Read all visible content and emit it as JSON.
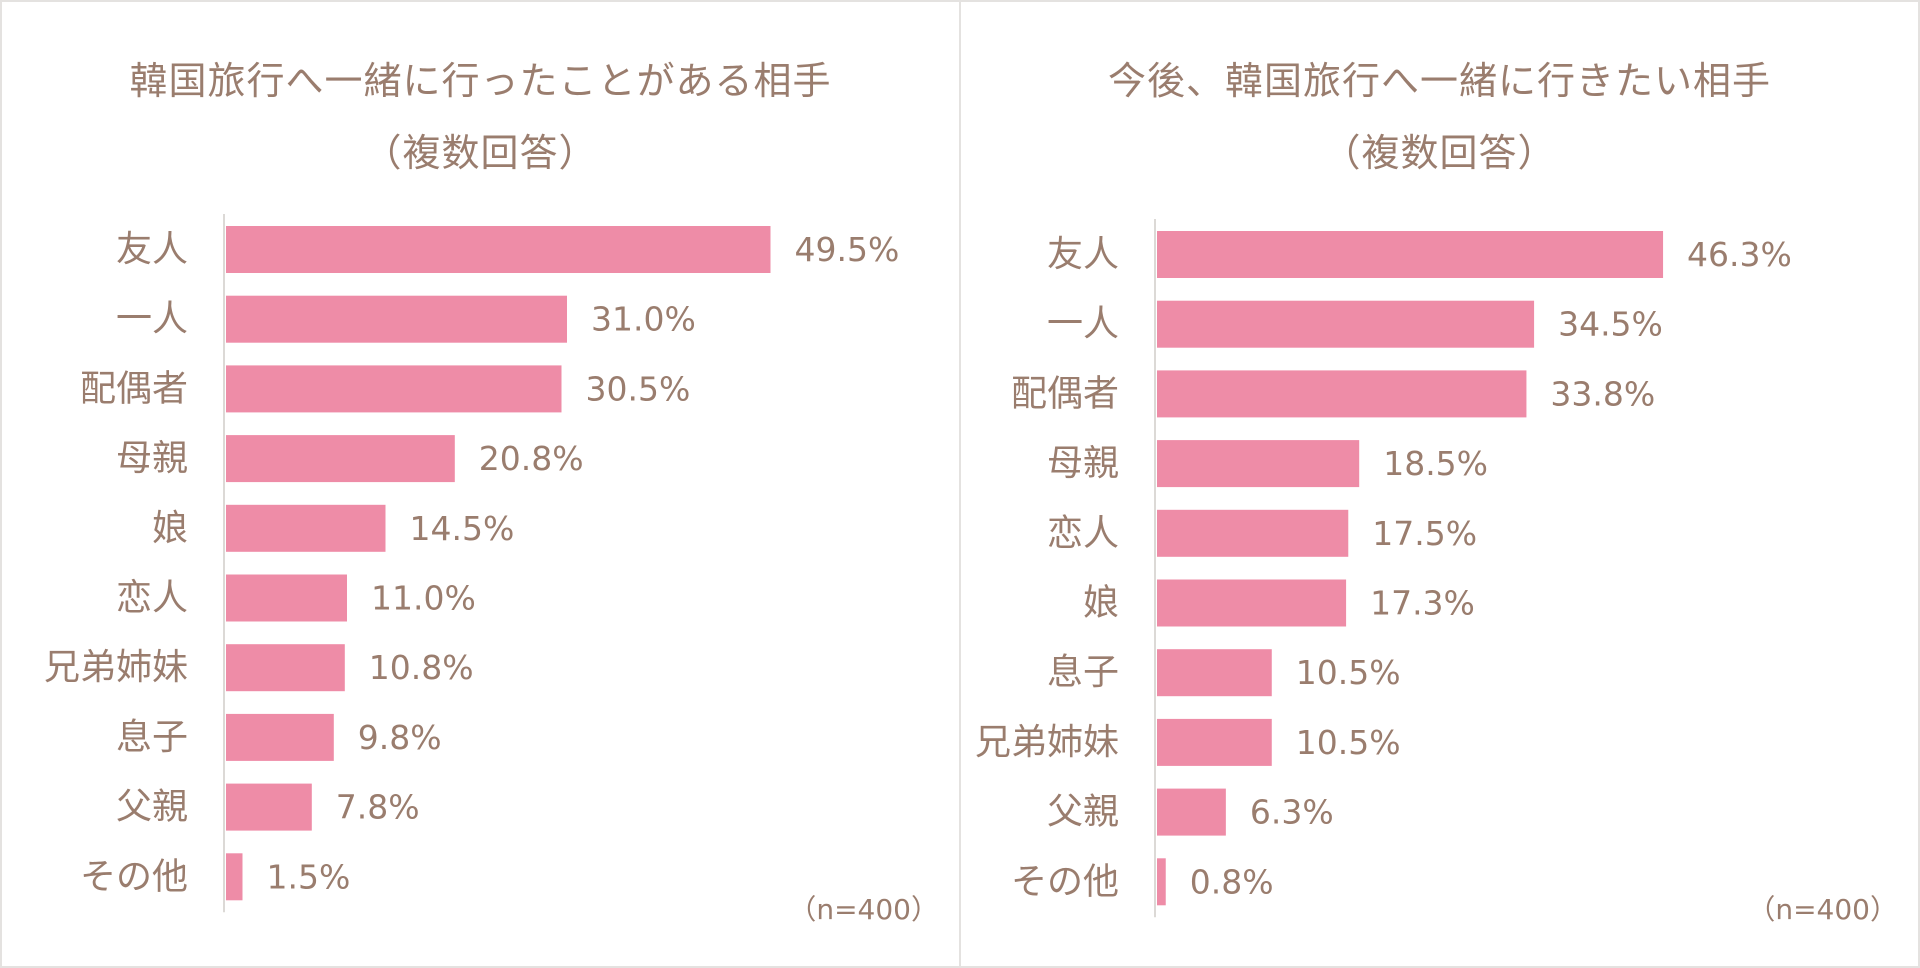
{
  "colors": {
    "bar": "#ee8ca7",
    "text": "#9a7d6e",
    "axis": "#dcd9d6",
    "border": "#e4e2e0"
  },
  "chart_data": [
    {
      "type": "bar",
      "orientation": "horizontal",
      "title": "韓国旅行へ一緒に行ったことがある相手",
      "subtitle": "（複数回答）",
      "categories": [
        "友人",
        "一人",
        "配偶者",
        "母親",
        "娘",
        "恋人",
        "兄弟姉妹",
        "息子",
        "父親",
        "その他"
      ],
      "values": [
        49.5,
        31.0,
        30.5,
        20.8,
        14.5,
        11.0,
        10.8,
        9.8,
        7.8,
        1.5
      ],
      "value_labels": [
        "49.5%",
        "31.0%",
        "30.5%",
        "20.8%",
        "14.5%",
        "11.0%",
        "10.8%",
        "9.8%",
        "7.8%",
        "1.5%"
      ],
      "xlim": [
        0,
        60
      ],
      "grid": false,
      "note": "（n=400）"
    },
    {
      "type": "bar",
      "orientation": "horizontal",
      "title": "今後、韓国旅行へ一緒に行きたい相手",
      "subtitle": "（複数回答）",
      "categories": [
        "友人",
        "一人",
        "配偶者",
        "母親",
        "恋人",
        "娘",
        "息子",
        "兄弟姉妹",
        "父親",
        "その他"
      ],
      "values": [
        46.3,
        34.5,
        33.8,
        18.5,
        17.5,
        17.3,
        10.5,
        10.5,
        6.3,
        0.8
      ],
      "value_labels": [
        "46.3%",
        "34.5%",
        "33.8%",
        "18.5%",
        "17.5%",
        "17.3%",
        "10.5%",
        "10.5%",
        "6.3%",
        "0.8%"
      ],
      "xlim": [
        0,
        60
      ],
      "grid": false,
      "note": "（n=400）"
    }
  ]
}
